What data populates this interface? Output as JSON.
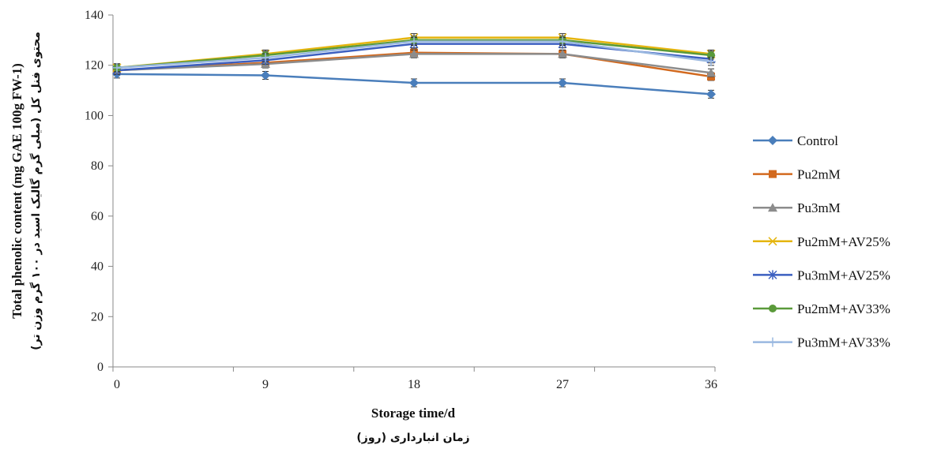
{
  "chart_data": {
    "type": "line",
    "x": [
      0,
      9,
      18,
      27,
      36
    ],
    "xlabel": "Storage time/d",
    "xlabel_sub": "زمان انبارداری (روز)",
    "ylabel": "Total phenolic content (mg GAE 100g FW-1)",
    "ylabel_sub": "محتوی فنل کل (میلی گرم گالیک اسید در ۱۰۰ گرم وزن تر)",
    "ylim": [
      0,
      140
    ],
    "yticks": [
      0,
      20,
      40,
      60,
      80,
      100,
      120,
      140
    ],
    "grid": false,
    "legend_position": "right",
    "series": [
      {
        "name": "Control",
        "color": "#4a7ebb",
        "marker": "diamond",
        "values": [
          116.5,
          116,
          113,
          113,
          108.5
        ]
      },
      {
        "name": "Pu2mM",
        "color": "#d2691e",
        "marker": "square",
        "values": [
          118,
          121,
          125,
          124.5,
          115.5
        ]
      },
      {
        "name": "Pu3mM",
        "color": "#8c8c8c",
        "marker": "triangle",
        "values": [
          118,
          120.5,
          124.5,
          124.5,
          117
        ]
      },
      {
        "name": "Pu2mM+AV25%",
        "color": "#e5b50e",
        "marker": "x",
        "values": [
          119,
          124.5,
          131,
          131,
          124.5
        ]
      },
      {
        "name": "Pu3mM+AV25%",
        "color": "#3b5fc0",
        "marker": "star",
        "values": [
          118,
          122,
          128.5,
          128.5,
          122.5
        ]
      },
      {
        "name": "Pu2mM+AV33%",
        "color": "#5a9a3a",
        "marker": "circle",
        "values": [
          119,
          124,
          130,
          130,
          124
        ]
      },
      {
        "name": "Pu3mM+AV33%",
        "color": "#9ab8e0",
        "marker": "plus",
        "values": [
          119,
          123,
          129.5,
          129.5,
          121.5
        ]
      }
    ]
  }
}
